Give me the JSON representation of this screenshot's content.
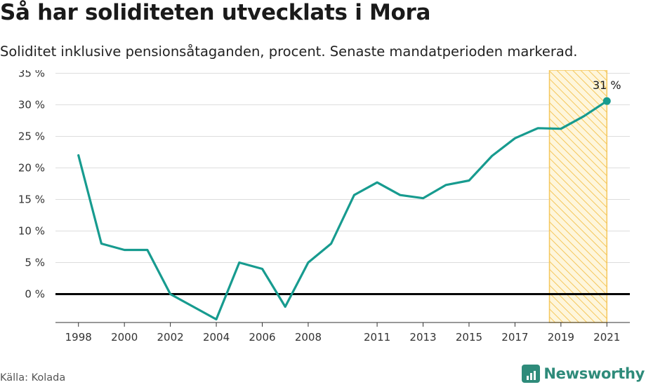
{
  "header": {
    "title": "Så har soliditeten utvecklats i Mora",
    "subtitle": "Soliditet inklusive pensionsåtaganden, procent. Senaste mandatperioden markerad."
  },
  "footer": {
    "source": "Källa: Kolada",
    "brand": "Newsworthy"
  },
  "colors": {
    "line": "#179b8f",
    "highlight_fill": "#fde9b3",
    "highlight_stroke": "#f5c75c",
    "grid": "#dddddd",
    "zero_line": "#000000"
  },
  "icons": {
    "brand_logo": "bar-chart-icon"
  },
  "chart_data": {
    "type": "line",
    "title": "Så har soliditeten utvecklats i Mora",
    "subtitle": "Soliditet inklusive pensionsåtaganden, procent. Senaste mandatperioden markerad.",
    "xlabel": "",
    "ylabel": "",
    "x": [
      1998,
      1999,
      2000,
      2001,
      2002,
      2003,
      2004,
      2005,
      2006,
      2007,
      2008,
      2009,
      2010,
      2011,
      2012,
      2013,
      2014,
      2015,
      2016,
      2017,
      2018,
      2019,
      2020,
      2021
    ],
    "series": [
      {
        "values": [
          22,
          8,
          7,
          7,
          0,
          -2,
          -4,
          5,
          4,
          -2,
          5,
          8,
          15.7,
          17.7,
          15.7,
          15.2,
          17.3,
          18,
          21.9,
          24.7,
          26.3,
          26.2,
          28.2,
          30.6
        ]
      }
    ],
    "xticks": [
      1998,
      2000,
      2002,
      2004,
      2006,
      2008,
      2011,
      2013,
      2015,
      2017,
      2019,
      2021
    ],
    "yticks": [
      0,
      5,
      10,
      15,
      20,
      25,
      30,
      35
    ],
    "ytick_labels": [
      "0 %",
      "5 %",
      "10 %",
      "15 %",
      "20 %",
      "25 %",
      "30 %",
      "35 %"
    ],
    "xlim": [
      1997,
      2022
    ],
    "ylim": [
      -4.5,
      35.5
    ],
    "highlight": {
      "from": 2018.5,
      "to": 2021
    },
    "annotation": {
      "x": 2021,
      "y": 30.6,
      "text": "31 %"
    },
    "grid": true
  }
}
